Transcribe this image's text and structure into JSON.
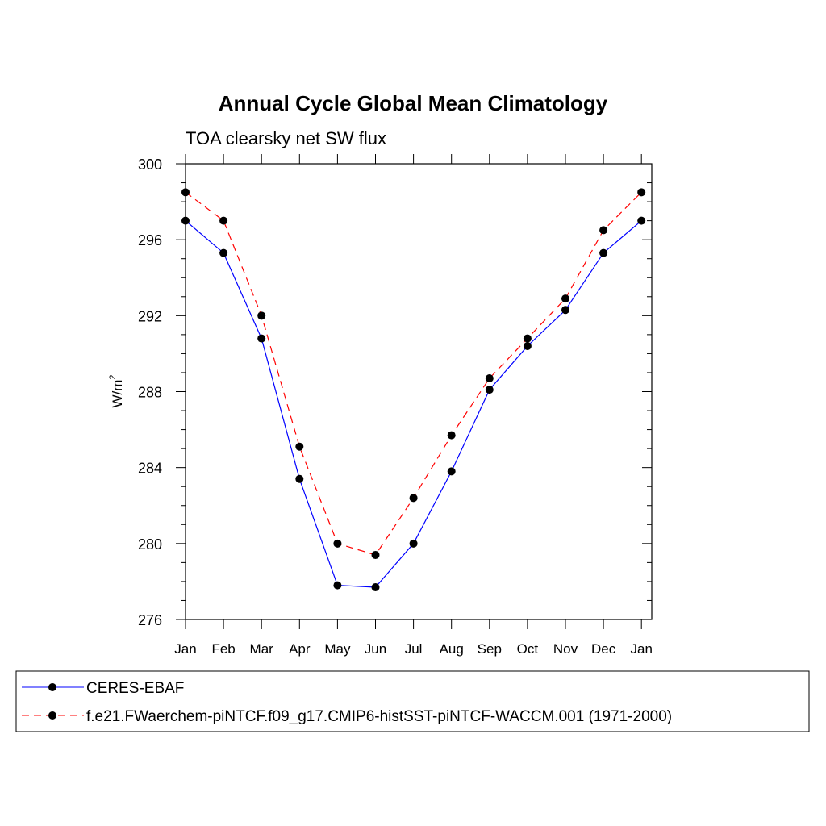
{
  "chart_data": {
    "type": "line",
    "title": "Annual Cycle Global Mean Climatology",
    "subtitle": "TOA clearsky net SW flux",
    "ylabel_base": "W/m",
    "ylabel_sup": "2",
    "xlabel": "",
    "categories": [
      "Jan",
      "Feb",
      "Mar",
      "Apr",
      "May",
      "Jun",
      "Jul",
      "Aug",
      "Sep",
      "Oct",
      "Nov",
      "Dec",
      "Jan"
    ],
    "ylim": [
      276,
      300
    ],
    "yticks": [
      276,
      280,
      284,
      288,
      292,
      296,
      300
    ],
    "grid": false,
    "legend_placement": "bottom",
    "series": [
      {
        "name": "CERES-EBAF",
        "color": "#0000ff",
        "dashed": false,
        "values": [
          297.0,
          295.3,
          290.8,
          283.4,
          277.8,
          277.7,
          280.0,
          283.8,
          288.1,
          290.4,
          292.3,
          295.3,
          297.0
        ]
      },
      {
        "name": "f.e21.FWaerchem-piNTCF.f09_g17.CMIP6-histSST-piNTCF-WACCM.001 (1971-2000)",
        "color": "#ff0000",
        "dashed": true,
        "values": [
          298.5,
          297.0,
          292.0,
          285.1,
          280.0,
          279.4,
          282.4,
          285.7,
          288.7,
          290.8,
          292.9,
          296.5,
          298.5
        ]
      }
    ]
  }
}
